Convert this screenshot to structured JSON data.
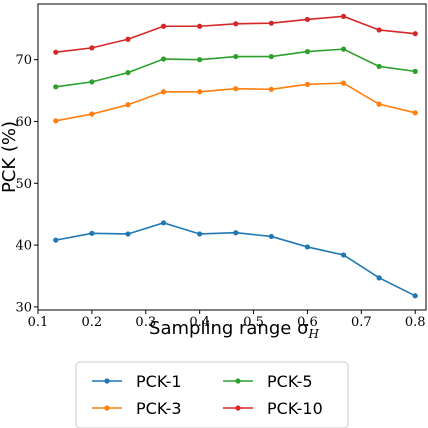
{
  "chart_data": {
    "type": "line",
    "title": "",
    "xlabel": "Sampling range σ",
    "xlabel_subscript": "H",
    "ylabel": "PCK (%)",
    "xlim": [
      0.1,
      0.82
    ],
    "ylim": [
      29.5,
      79
    ],
    "x_ticks": [
      0.1,
      0.2,
      0.3,
      0.4,
      0.5,
      0.6,
      0.7,
      0.8
    ],
    "x_tick_labels": [
      "0.1",
      "0.2",
      "0.3",
      "0.4",
      "0.5",
      "0.6",
      "0.7",
      "0.8"
    ],
    "y_ticks": [
      30,
      40,
      50,
      60,
      70
    ],
    "y_tick_labels": [
      "30",
      "40",
      "50",
      "60",
      "70"
    ],
    "grid": false,
    "legend_placement": "bottom-center",
    "x": [
      0.133,
      0.2,
      0.267,
      0.333,
      0.4,
      0.467,
      0.533,
      0.6,
      0.667,
      0.733,
      0.8
    ],
    "series": [
      {
        "name": "PCK-1",
        "color": "#1f77b4",
        "values": [
          40.8,
          41.9,
          41.8,
          43.6,
          41.8,
          42.0,
          41.4,
          39.7,
          38.4,
          34.7,
          31.8
        ]
      },
      {
        "name": "PCK-3",
        "color": "#ff7f0e",
        "values": [
          60.1,
          61.2,
          62.7,
          64.8,
          64.8,
          65.3,
          65.2,
          66.0,
          66.2,
          62.8,
          61.4
        ]
      },
      {
        "name": "PCK-5",
        "color": "#2ca02c",
        "values": [
          65.6,
          66.4,
          67.9,
          70.1,
          70.0,
          70.5,
          70.5,
          71.3,
          71.7,
          68.9,
          68.1
        ]
      },
      {
        "name": "PCK-10",
        "color": "#d62728",
        "values": [
          71.2,
          71.9,
          73.3,
          75.4,
          75.4,
          75.8,
          75.9,
          76.5,
          77.0,
          74.8,
          74.2
        ]
      }
    ]
  }
}
